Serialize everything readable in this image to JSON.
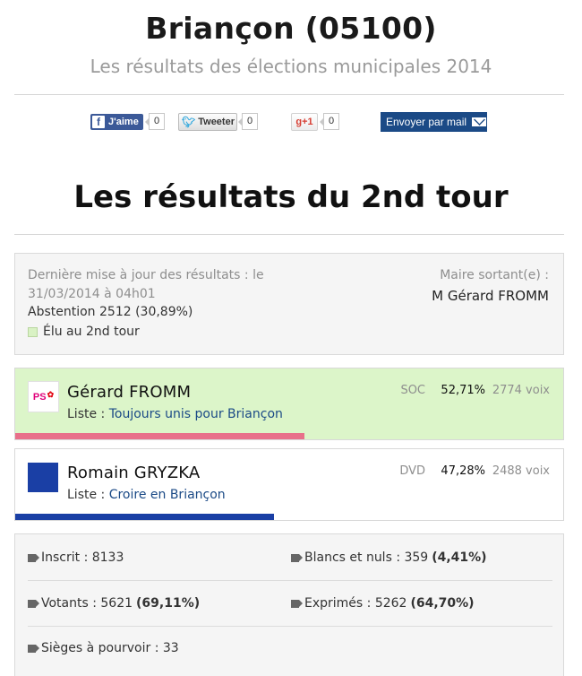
{
  "header": {
    "title": "Briançon (05100)",
    "subtitle": "Les résultats des élections municipales 2014"
  },
  "share": {
    "facebook_label": "J'aime",
    "facebook_count": "0",
    "twitter_label": "Tweeter",
    "twitter_count": "0",
    "gplus_label": "+1",
    "gplus_count": "0",
    "mail_label": "Envoyer par mail"
  },
  "section_title": "Les résultats du 2nd tour",
  "info": {
    "update_text": "Dernière mise à jour des résultats : le 31/03/2014 à 04h01",
    "abstention": "Abstention 2512 (30,89%)",
    "elu_legend": "Élu au 2nd tour",
    "mayor_label": "Maire sortant(e) :",
    "mayor_name": "M Gérard FROMM"
  },
  "candidates": [
    {
      "name": "Gérard FROMM",
      "list_prefix": "Liste : ",
      "list_name": "Toujours unis pour Briançon",
      "nuance": "SOC",
      "percent": "52,71%",
      "percent_value": 52.71,
      "voix": "2774 voix",
      "elected": true,
      "logo_text": "PS",
      "bar_color": "#e8708a"
    },
    {
      "name": "Romain GRYZKA",
      "list_prefix": "Liste : ",
      "list_name": "Croire en Briançon",
      "nuance": "DVD",
      "percent": "47,28%",
      "percent_value": 47.28,
      "voix": "2488 voix",
      "elected": false,
      "bar_color": "#1a3fa5"
    }
  ],
  "stats": {
    "inscrits_label": "Inscrit : 8133",
    "blancs_label": "Blancs et nuls : 359",
    "blancs_pct": "(4,41%)",
    "votants_label": "Votants : 5621",
    "votants_pct": "(69,11%)",
    "exprimes_label": "Exprimés : 5262",
    "exprimes_pct": "(64,70%)",
    "sieges_label": "Sièges à pourvoir : 33"
  },
  "colors": {
    "win_bg": "#dcf5c9",
    "link": "#1b4a86",
    "facebook": "#3b5998"
  }
}
